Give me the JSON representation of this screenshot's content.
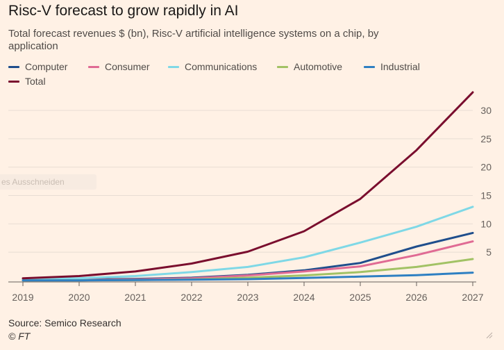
{
  "title": "Risc-V forecast to grow rapidly in AI",
  "subtitle": "Total forecast revenues $ (bn), Risc-V artificial intelligence systems on a chip, by application",
  "source": "Source: Semico Research",
  "copyright": "© FT",
  "overlay_text": "es Ausschneiden",
  "colors": {
    "background": "#fff1e5",
    "grid": "#e8ddd3",
    "axis": "#66605c"
  },
  "chart_data": {
    "type": "line",
    "title": "Risc-V forecast to grow rapidly in AI",
    "subtitle": "Total forecast revenues $ (bn), Risc-V artificial intelligence systems on a chip, by application",
    "x": [
      2019,
      2020,
      2021,
      2022,
      2023,
      2024,
      2025,
      2026,
      2027
    ],
    "x_tick_labels": [
      "2019",
      "2020",
      "2021",
      "2022",
      "2023",
      "2024",
      "2025",
      "2026",
      "2027"
    ],
    "ylim": [
      0,
      33
    ],
    "y_ticks": [
      5,
      10,
      15,
      20,
      25,
      30
    ],
    "y_tick_labels": [
      "5",
      "10",
      "15",
      "20",
      "25",
      "30"
    ],
    "y_axis_side": "right",
    "grid": true,
    "legend_position": "top-left",
    "series": [
      {
        "name": "Computer",
        "color": "#1f4e8c",
        "values": [
          0.1,
          0.2,
          0.3,
          0.5,
          1.0,
          1.8,
          3.1,
          6.0,
          8.4
        ]
      },
      {
        "name": "Consumer",
        "color": "#e06b94",
        "values": [
          0.05,
          0.1,
          0.2,
          0.4,
          0.9,
          1.6,
          2.5,
          4.5,
          6.9
        ]
      },
      {
        "name": "Communications",
        "color": "#7fd8e6",
        "values": [
          0.2,
          0.4,
          0.8,
          1.5,
          2.4,
          4.1,
          6.7,
          9.5,
          13.0
        ]
      },
      {
        "name": "Automotive",
        "color": "#a2c265",
        "values": [
          0.02,
          0.05,
          0.1,
          0.2,
          0.5,
          0.9,
          1.5,
          2.4,
          3.8
        ]
      },
      {
        "name": "Industrial",
        "color": "#2e7fc2",
        "values": [
          0.02,
          0.04,
          0.08,
          0.15,
          0.25,
          0.45,
          0.7,
          0.95,
          1.4
        ]
      },
      {
        "name": "Total",
        "color": "#7a0e2e",
        "values": [
          0.4,
          0.8,
          1.6,
          3.0,
          5.1,
          8.7,
          14.4,
          23.0,
          33.2
        ]
      }
    ]
  }
}
